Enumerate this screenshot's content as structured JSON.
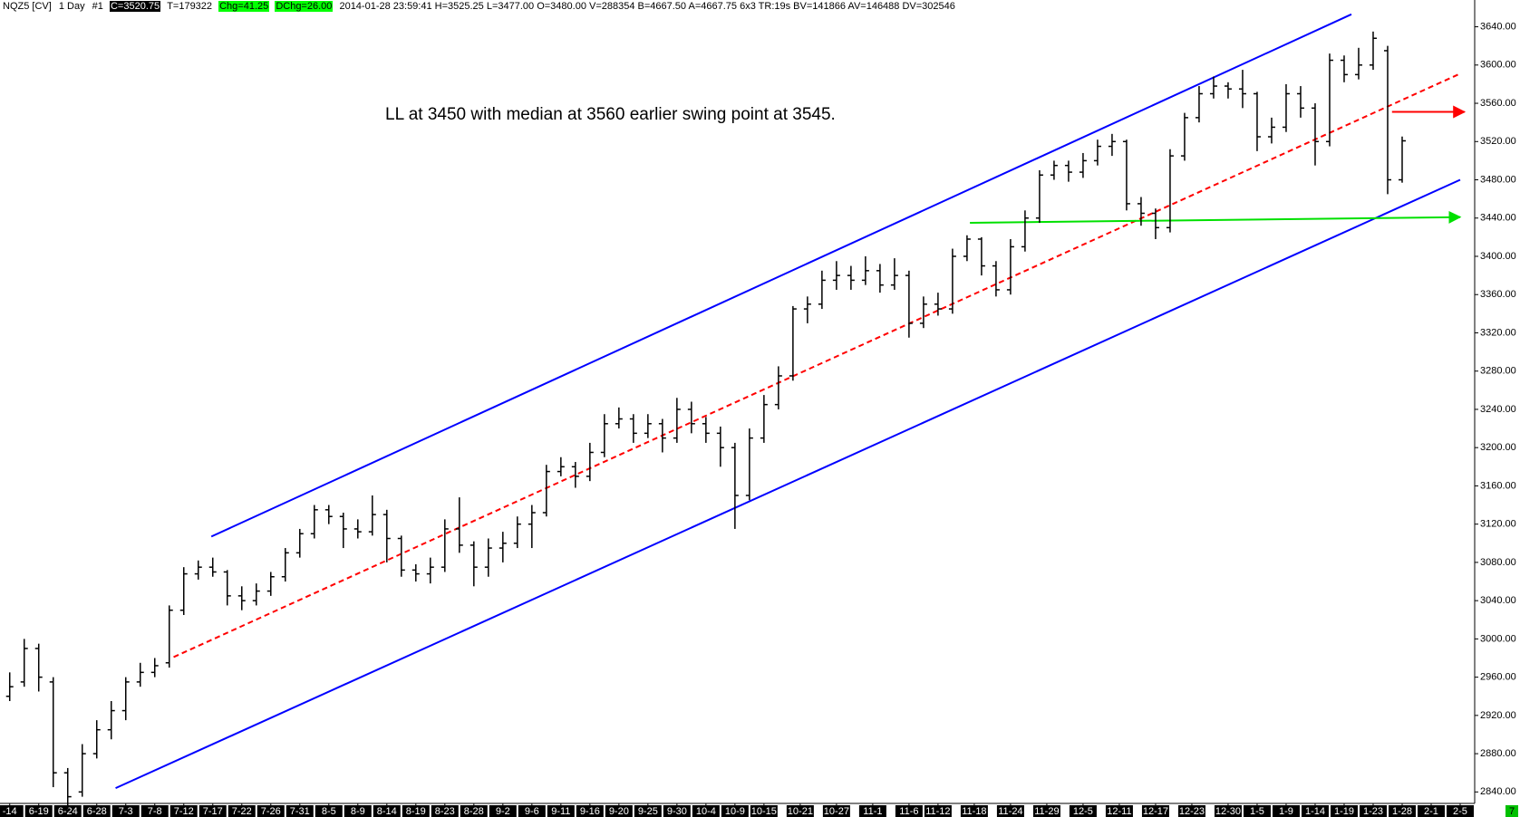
{
  "chart_data": {
    "type": "ohlc",
    "header": [
      "NQZ5 [CV]",
      "1 Day",
      "#1",
      "C=3520.75",
      "T=179322",
      "Chg=41.25",
      "DChg=26.00",
      "2014-01-28 23:59:41 H=3525.25 L=3477.00 O=3480.00 V=288354 B=4667.50 A=4667.75 6x3 TR:19s BV=141866 AV=146488 DV=302546"
    ],
    "annotation": "LL at 3450 with median at 3560 earlier swing point at 3545.",
    "color": "#000000",
    "x": [
      0,
      1,
      2,
      3,
      4,
      5,
      6,
      7,
      8,
      9,
      10,
      11,
      12,
      13,
      14,
      15,
      16,
      17,
      18,
      19,
      20,
      21,
      22,
      23,
      24,
      25,
      26,
      27,
      28,
      29,
      30,
      31,
      32,
      33,
      34,
      35,
      36,
      37,
      38,
      39,
      40,
      41,
      42,
      43,
      44,
      45,
      46,
      47,
      48,
      49,
      50,
      51,
      52,
      53,
      54,
      55,
      56,
      57,
      58,
      59,
      60,
      61,
      62,
      63,
      64,
      65,
      66,
      67,
      68,
      69,
      70,
      71,
      72,
      73,
      74,
      75,
      76,
      77,
      78,
      79,
      80,
      81,
      82,
      83,
      84,
      85,
      86,
      87,
      88,
      89,
      90,
      91,
      92,
      93,
      94,
      95,
      96
    ],
    "ohlc": [
      [
        2940,
        2965,
        2935,
        2950
      ],
      [
        2955,
        3000,
        2950,
        2990
      ],
      [
        2990,
        2995,
        2945,
        2960
      ],
      [
        2955,
        2960,
        2845,
        2860
      ],
      [
        2860,
        2865,
        2822,
        2835
      ],
      [
        2840,
        2890,
        2835,
        2880
      ],
      [
        2880,
        2915,
        2875,
        2905
      ],
      [
        2905,
        2935,
        2895,
        2925
      ],
      [
        2925,
        2960,
        2915,
        2955
      ],
      [
        2955,
        2975,
        2950,
        2965
      ],
      [
        2965,
        2980,
        2960,
        2972
      ],
      [
        2975,
        3035,
        2970,
        3030
      ],
      [
        3030,
        3075,
        3025,
        3068
      ],
      [
        3068,
        3082,
        3062,
        3075
      ],
      [
        3075,
        3085,
        3065,
        3070
      ],
      [
        3070,
        3072,
        3035,
        3045
      ],
      [
        3045,
        3055,
        3030,
        3040
      ],
      [
        3040,
        3058,
        3035,
        3050
      ],
      [
        3050,
        3070,
        3045,
        3065
      ],
      [
        3065,
        3095,
        3060,
        3090
      ],
      [
        3090,
        3115,
        3085,
        3110
      ],
      [
        3110,
        3140,
        3105,
        3135
      ],
      [
        3135,
        3140,
        3120,
        3128
      ],
      [
        3128,
        3132,
        3095,
        3115
      ],
      [
        3115,
        3125,
        3105,
        3112
      ],
      [
        3112,
        3150,
        3108,
        3130
      ],
      [
        3130,
        3135,
        3080,
        3105
      ],
      [
        3105,
        3108,
        3065,
        3072
      ],
      [
        3072,
        3078,
        3060,
        3068
      ],
      [
        3068,
        3085,
        3058,
        3075
      ],
      [
        3075,
        3125,
        3070,
        3115
      ],
      [
        3115,
        3148,
        3090,
        3098
      ],
      [
        3098,
        3102,
        3055,
        3075
      ],
      [
        3075,
        3105,
        3065,
        3095
      ],
      [
        3095,
        3112,
        3080,
        3100
      ],
      [
        3100,
        3128,
        3095,
        3120
      ],
      [
        3120,
        3140,
        3095,
        3132
      ],
      [
        3132,
        3182,
        3128,
        3175
      ],
      [
        3175,
        3190,
        3170,
        3180
      ],
      [
        3180,
        3185,
        3158,
        3170
      ],
      [
        3170,
        3205,
        3165,
        3195
      ],
      [
        3195,
        3235,
        3190,
        3225
      ],
      [
        3225,
        3242,
        3220,
        3230
      ],
      [
        3230,
        3235,
        3205,
        3215
      ],
      [
        3215,
        3235,
        3210,
        3225
      ],
      [
        3225,
        3230,
        3195,
        3210
      ],
      [
        3210,
        3252,
        3205,
        3240
      ],
      [
        3240,
        3248,
        3215,
        3225
      ],
      [
        3225,
        3232,
        3205,
        3215
      ],
      [
        3215,
        3222,
        3180,
        3200
      ],
      [
        3200,
        3205,
        3115,
        3150
      ],
      [
        3150,
        3220,
        3145,
        3210
      ],
      [
        3210,
        3255,
        3205,
        3245
      ],
      [
        3245,
        3285,
        3240,
        3275
      ],
      [
        3275,
        3348,
        3270,
        3345
      ],
      [
        3345,
        3358,
        3330,
        3350
      ],
      [
        3350,
        3385,
        3345,
        3375
      ],
      [
        3375,
        3395,
        3365,
        3380
      ],
      [
        3380,
        3390,
        3365,
        3375
      ],
      [
        3375,
        3400,
        3370,
        3385
      ],
      [
        3385,
        3392,
        3362,
        3370
      ],
      [
        3370,
        3398,
        3365,
        3380
      ],
      [
        3380,
        3385,
        3315,
        3330
      ],
      [
        3330,
        3358,
        3325,
        3350
      ],
      [
        3350,
        3362,
        3338,
        3345
      ],
      [
        3345,
        3408,
        3340,
        3400
      ],
      [
        3400,
        3422,
        3395,
        3418
      ],
      [
        3418,
        3420,
        3380,
        3390
      ],
      [
        3390,
        3395,
        3358,
        3365
      ],
      [
        3365,
        3418,
        3360,
        3410
      ],
      [
        3410,
        3448,
        3405,
        3440
      ],
      [
        3440,
        3490,
        3435,
        3485
      ],
      [
        3485,
        3500,
        3480,
        3495
      ],
      [
        3495,
        3500,
        3478,
        3488
      ],
      [
        3488,
        3508,
        3482,
        3500
      ],
      [
        3500,
        3522,
        3495,
        3515
      ],
      [
        3515,
        3528,
        3505,
        3520
      ],
      [
        3520,
        3522,
        3448,
        3455
      ],
      [
        3455,
        3462,
        3432,
        3445
      ],
      [
        3445,
        3450,
        3418,
        3430
      ],
      [
        3430,
        3512,
        3425,
        3505
      ],
      [
        3505,
        3550,
        3500,
        3545
      ],
      [
        3545,
        3578,
        3540,
        3570
      ],
      [
        3570,
        3588,
        3565,
        3578
      ],
      [
        3578,
        3582,
        3565,
        3575
      ],
      [
        3575,
        3595,
        3555,
        3570
      ],
      [
        3570,
        3572,
        3510,
        3525
      ],
      [
        3525,
        3545,
        3518,
        3535
      ],
      [
        3535,
        3580,
        3530,
        3570
      ],
      [
        3570,
        3578,
        3545,
        3555
      ],
      [
        3555,
        3560,
        3495,
        3520
      ],
      [
        3520,
        3612,
        3515,
        3605
      ],
      [
        3605,
        3610,
        3582,
        3590
      ],
      [
        3590,
        3618,
        3585,
        3600
      ],
      [
        3600,
        3635,
        3595,
        3628
      ],
      [
        3615,
        3620,
        3465,
        3480
      ],
      [
        3480,
        3525.25,
        3477,
        3520.75
      ]
    ],
    "lines": [
      {
        "color": "#0000ff",
        "dash": false,
        "arrow": false,
        "x": [
          13.9,
          92.5
        ],
        "y": [
          3107,
          3653
        ]
      },
      {
        "color": "#0000ff",
        "dash": false,
        "arrow": false,
        "x": [
          7.3,
          100
        ],
        "y": [
          2844,
          3480
        ]
      },
      {
        "color": "#ff0000",
        "dash": true,
        "arrow": false,
        "x": [
          11.3,
          100
        ],
        "y": [
          2981,
          3591
        ]
      },
      {
        "color": "#00e000",
        "dash": false,
        "arrow": true,
        "x": [
          66.2,
          100
        ],
        "y": [
          3435,
          3441
        ]
      },
      {
        "color": "#ff0000",
        "dash": false,
        "arrow": true,
        "x": [
          95.3,
          100.3
        ],
        "y": [
          3551,
          3551
        ]
      }
    ],
    "xlim": [
      -0.67,
      101
    ],
    "xticks": [
      {
        "value": 0,
        "label": "-14"
      },
      {
        "value": 2,
        "label": "6-19"
      },
      {
        "value": 4,
        "label": "6-24"
      },
      {
        "value": 6,
        "label": "6-28"
      },
      {
        "value": 8,
        "label": "7-3"
      },
      {
        "value": 10,
        "label": "7-8"
      },
      {
        "value": 12,
        "label": "7-12"
      },
      {
        "value": 14,
        "label": "7-17"
      },
      {
        "value": 16,
        "label": "7-22"
      },
      {
        "value": 18,
        "label": "7-26"
      },
      {
        "value": 20,
        "label": "7-31"
      },
      {
        "value": 22,
        "label": "8-5"
      },
      {
        "value": 24,
        "label": "8-9"
      },
      {
        "value": 26,
        "label": "8-14"
      },
      {
        "value": 28,
        "label": "8-19"
      },
      {
        "value": 30,
        "label": "8-23"
      },
      {
        "value": 32,
        "label": "8-28"
      },
      {
        "value": 34,
        "label": "9-2"
      },
      {
        "value": 36,
        "label": "9-6"
      },
      {
        "value": 38,
        "label": "9-11"
      },
      {
        "value": 40,
        "label": "9-16"
      },
      {
        "value": 42,
        "label": "9-20"
      },
      {
        "value": 44,
        "label": "9-25"
      },
      {
        "value": 46,
        "label": "9-30"
      },
      {
        "value": 48,
        "label": "10-4"
      },
      {
        "value": 50,
        "label": "10-9"
      },
      {
        "value": 52,
        "label": "10-15"
      },
      {
        "value": 54.5,
        "label": "10-21"
      },
      {
        "value": 57,
        "label": "10-27"
      },
      {
        "value": 59.5,
        "label": "11-1"
      },
      {
        "value": 62,
        "label": "11-6"
      },
      {
        "value": 64,
        "label": "11-12"
      },
      {
        "value": 66.5,
        "label": "11-18"
      },
      {
        "value": 69,
        "label": "11-24"
      },
      {
        "value": 71.5,
        "label": "11-29"
      },
      {
        "value": 74,
        "label": "12-5"
      },
      {
        "value": 76.5,
        "label": "12-11"
      },
      {
        "value": 79,
        "label": "12-17"
      },
      {
        "value": 81.5,
        "label": "12-23"
      },
      {
        "value": 84,
        "label": "12-30"
      },
      {
        "value": 86,
        "label": "1-5"
      },
      {
        "value": 88,
        "label": "1-9"
      },
      {
        "value": 90,
        "label": "1-14"
      },
      {
        "value": 92,
        "label": "1-19"
      },
      {
        "value": 94,
        "label": "1-23"
      },
      {
        "value": 96,
        "label": "1-28"
      },
      {
        "value": 98,
        "label": "2-1"
      },
      {
        "value": 100,
        "label": "2-5"
      }
    ],
    "ylim": [
      2828,
      3668
    ],
    "yticks": [
      {
        "value": 2840,
        "label": "2840.00"
      },
      {
        "value": 2880,
        "label": "2880.00"
      },
      {
        "value": 2920,
        "label": "2920.00"
      },
      {
        "value": 2960,
        "label": "2960.00"
      },
      {
        "value": 3000,
        "label": "3000.00"
      },
      {
        "value": 3040,
        "label": "3040.00"
      },
      {
        "value": 3080,
        "label": "3080.00"
      },
      {
        "value": 3120,
        "label": "3120.00"
      },
      {
        "value": 3160,
        "label": "3160.00"
      },
      {
        "value": 3200,
        "label": "3200.00"
      },
      {
        "value": 3240,
        "label": "3240.00"
      },
      {
        "value": 3280,
        "label": "3280.00"
      },
      {
        "value": 3320,
        "label": "3320.00"
      },
      {
        "value": 3360,
        "label": "3360.00"
      },
      {
        "value": 3400,
        "label": "3400.00"
      },
      {
        "value": 3440,
        "label": "3440.00"
      },
      {
        "value": 3480,
        "label": "3480.00"
      },
      {
        "value": 3520,
        "label": "3520.00"
      },
      {
        "value": 3560,
        "label": "3560.00"
      },
      {
        "value": 3600,
        "label": "3600.00"
      },
      {
        "value": 3640,
        "label": "3640.00"
      }
    ],
    "corner_label": "7",
    "grid": false
  }
}
